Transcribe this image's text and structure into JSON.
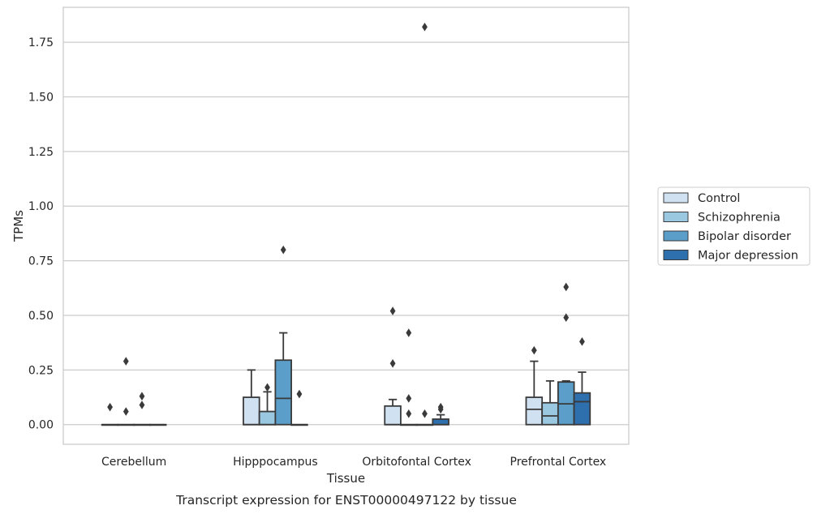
{
  "chart_data": {
    "type": "box",
    "title": "",
    "caption": "Transcript expression for ENST00000497122 by tissue",
    "xlabel": "Tissue",
    "ylabel": "TPMs",
    "ylim": [
      -0.09,
      1.91
    ],
    "yticks": [
      "0.00",
      "0.25",
      "0.50",
      "0.75",
      "1.00",
      "1.25",
      "1.50",
      "1.75"
    ],
    "ytick_values": [
      0,
      0.25,
      0.5,
      0.75,
      1.0,
      1.25,
      1.5,
      1.75
    ],
    "grid": true,
    "legend_position": "right",
    "categories": [
      "Cerebellum",
      "Hipppocampus",
      "Orbitofontal Cortex",
      "Prefrontal Cortex"
    ],
    "series": [
      {
        "name": "Control",
        "color": "#d0e1f2",
        "boxes": [
          {
            "q1": 0,
            "median": 0,
            "q3": 0,
            "whisker_low": 0,
            "whisker_high": 0,
            "outliers": [
              0.08
            ]
          },
          {
            "q1": 0,
            "median": 0,
            "q3": 0.125,
            "whisker_low": 0,
            "whisker_high": 0.25,
            "outliers": []
          },
          {
            "q1": 0,
            "median": 0,
            "q3": 0.085,
            "whisker_low": 0,
            "whisker_high": 0.115,
            "outliers": [
              0.28,
              0.52
            ]
          },
          {
            "q1": 0,
            "median": 0.07,
            "q3": 0.125,
            "whisker_low": 0,
            "whisker_high": 0.29,
            "outliers": [
              0.34
            ]
          }
        ]
      },
      {
        "name": "Schizophrenia",
        "color": "#9ac8e0",
        "boxes": [
          {
            "q1": 0,
            "median": 0,
            "q3": 0,
            "whisker_low": 0,
            "whisker_high": 0,
            "outliers": [
              0.06,
              0.29
            ]
          },
          {
            "q1": 0,
            "median": 0,
            "q3": 0.06,
            "whisker_low": 0,
            "whisker_high": 0.15,
            "outliers": [
              0.17
            ]
          },
          {
            "q1": 0,
            "median": 0,
            "q3": 0,
            "whisker_low": 0,
            "whisker_high": 0,
            "outliers": [
              0.05,
              0.12,
              0.42
            ]
          },
          {
            "q1": 0,
            "median": 0.04,
            "q3": 0.1,
            "whisker_low": 0,
            "whisker_high": 0.2,
            "outliers": []
          }
        ]
      },
      {
        "name": "Bipolar disorder",
        "color": "#5b9ec9",
        "boxes": [
          {
            "q1": 0,
            "median": 0,
            "q3": 0,
            "whisker_low": 0,
            "whisker_high": 0,
            "outliers": [
              0.09,
              0.13
            ]
          },
          {
            "q1": 0,
            "median": 0.12,
            "q3": 0.295,
            "whisker_low": 0,
            "whisker_high": 0.42,
            "outliers": [
              0.8
            ]
          },
          {
            "q1": 0,
            "median": 0,
            "q3": 0,
            "whisker_low": 0,
            "whisker_high": 0,
            "outliers": [
              0.05,
              1.82
            ]
          },
          {
            "q1": 0,
            "median": 0.095,
            "q3": 0.195,
            "whisker_low": 0,
            "whisker_high": 0.2,
            "outliers": [
              0.49,
              0.63
            ]
          }
        ]
      },
      {
        "name": "Major depression",
        "color": "#2e6fad",
        "boxes": [
          {
            "q1": 0,
            "median": 0,
            "q3": 0,
            "whisker_low": 0,
            "whisker_high": 0,
            "outliers": []
          },
          {
            "q1": 0,
            "median": 0,
            "q3": 0,
            "whisker_low": 0,
            "whisker_high": 0,
            "outliers": [
              0.14
            ]
          },
          {
            "q1": 0,
            "median": 0,
            "q3": 0.025,
            "whisker_low": 0,
            "whisker_high": 0.045,
            "outliers": [
              0.07,
              0.08
            ]
          },
          {
            "q1": 0,
            "median": 0.105,
            "q3": 0.145,
            "whisker_low": 0,
            "whisker_high": 0.24,
            "outliers": [
              0.38
            ]
          }
        ]
      }
    ]
  }
}
